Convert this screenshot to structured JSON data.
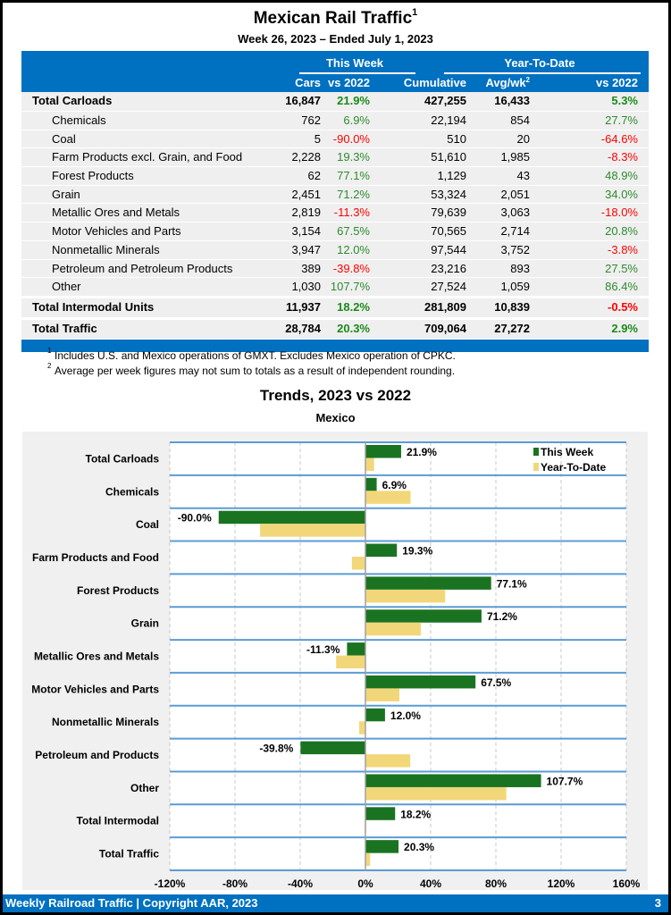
{
  "header": {
    "title": "Mexican Rail Traffic",
    "title_sup": "1",
    "subtitle": "Week 26, 2023 – Ended July 1, 2023"
  },
  "table": {
    "group_this_week": "This Week",
    "group_ytd": "Year-To-Date",
    "col_cars": "Cars",
    "col_vs2022_week": "vs 2022",
    "col_cumulative": "Cumulative",
    "col_avgwk": "Avg/wk",
    "col_avgwk_sup": "2",
    "col_vs2022_ytd": "vs 2022",
    "rows": [
      {
        "label": "Total Carloads",
        "cars": "16,847",
        "wk_pct": "21.9%",
        "cum": "427,255",
        "avg": "16,433",
        "ytd_pct": "5.3%"
      },
      {
        "label": "Chemicals",
        "cars": "762",
        "wk_pct": "6.9%",
        "cum": "22,194",
        "avg": "854",
        "ytd_pct": "27.7%"
      },
      {
        "label": "Coal",
        "cars": "5",
        "wk_pct": "-90.0%",
        "cum": "510",
        "avg": "20",
        "ytd_pct": "-64.6%"
      },
      {
        "label": "Farm Products excl. Grain, and Food",
        "cars": "2,228",
        "wk_pct": "19.3%",
        "cum": "51,610",
        "avg": "1,985",
        "ytd_pct": "-8.3%"
      },
      {
        "label": "Forest Products",
        "cars": "62",
        "wk_pct": "77.1%",
        "cum": "1,129",
        "avg": "43",
        "ytd_pct": "48.9%"
      },
      {
        "label": "Grain",
        "cars": "2,451",
        "wk_pct": "71.2%",
        "cum": "53,324",
        "avg": "2,051",
        "ytd_pct": "34.0%"
      },
      {
        "label": "Metallic Ores and Metals",
        "cars": "2,819",
        "wk_pct": "-11.3%",
        "cum": "79,639",
        "avg": "3,063",
        "ytd_pct": "-18.0%"
      },
      {
        "label": "Motor Vehicles and Parts",
        "cars": "3,154",
        "wk_pct": "67.5%",
        "cum": "70,565",
        "avg": "2,714",
        "ytd_pct": "20.8%"
      },
      {
        "label": "Nonmetallic Minerals",
        "cars": "3,947",
        "wk_pct": "12.0%",
        "cum": "97,544",
        "avg": "3,752",
        "ytd_pct": "-3.8%"
      },
      {
        "label": "Petroleum and Petroleum Products",
        "cars": "389",
        "wk_pct": "-39.8%",
        "cum": "23,216",
        "avg": "893",
        "ytd_pct": "27.5%"
      },
      {
        "label": "Other",
        "cars": "1,030",
        "wk_pct": "107.7%",
        "cum": "27,524",
        "avg": "1,059",
        "ytd_pct": "86.4%"
      },
      {
        "label": "Total Intermodal Units",
        "cars": "11,937",
        "wk_pct": "18.2%",
        "cum": "281,809",
        "avg": "10,839",
        "ytd_pct": "-0.5%"
      },
      {
        "label": "Total Traffic",
        "cars": "28,784",
        "wk_pct": "20.3%",
        "cum": "709,064",
        "avg": "27,272",
        "ytd_pct": "2.9%"
      }
    ]
  },
  "notes": [
    {
      "sup": "1",
      "text": "Includes U.S. and Mexico operations of GMXT. Excludes Mexico operation of CPKC."
    },
    {
      "sup": "2",
      "text": "Average per week figures may not sum to totals as a result of independent rounding."
    }
  ],
  "colors": {
    "brand_blue": "#0070c0",
    "positive": "#1a8a1a",
    "negative": "#ff0000",
    "this_week_bar": "#1a7320",
    "ytd_bar": "#f2d77a"
  },
  "chart_data": {
    "type": "bar",
    "orientation": "horizontal",
    "title": "Trends, 2023 vs 2022",
    "subtitle": "Mexico",
    "categories": [
      "Total Carloads",
      "Chemicals",
      "Coal",
      "Farm Products and Food",
      "Forest Products",
      "Grain",
      "Metallic Ores and Metals",
      "Motor Vehicles and Parts",
      "Nonmetallic Minerals",
      "Petroleum and Products",
      "Other",
      "Total Intermodal",
      "Total Traffic"
    ],
    "series": [
      {
        "name": "This Week",
        "values": [
          21.9,
          6.9,
          -90.0,
          19.3,
          77.1,
          71.2,
          -11.3,
          67.5,
          12.0,
          -39.8,
          107.7,
          18.2,
          20.3
        ]
      },
      {
        "name": "Year-To-Date",
        "values": [
          5.3,
          27.7,
          -64.6,
          -8.3,
          48.9,
          34.0,
          -18.0,
          20.8,
          -3.8,
          27.5,
          86.4,
          -0.5,
          2.9
        ]
      }
    ],
    "data_labels": [
      "21.9%",
      "6.9%",
      "-90.0%",
      "19.3%",
      "77.1%",
      "71.2%",
      "-11.3%",
      "67.5%",
      "12.0%",
      "-39.8%",
      "107.7%",
      "18.2%",
      "20.3%"
    ],
    "xlim": [
      -120,
      160
    ],
    "xticks": [
      "-120%",
      "-80%",
      "-40%",
      "0%",
      "40%",
      "80%",
      "120%",
      "160%"
    ],
    "xtick_values": [
      -120,
      -80,
      -40,
      0,
      40,
      80,
      120,
      160
    ],
    "xlabel": "",
    "ylabel": "",
    "grid": true,
    "legend_position": "top-right"
  },
  "footer": {
    "text": "Weekly Railroad Traffic | Copyright AAR, 2023",
    "page": "3"
  }
}
